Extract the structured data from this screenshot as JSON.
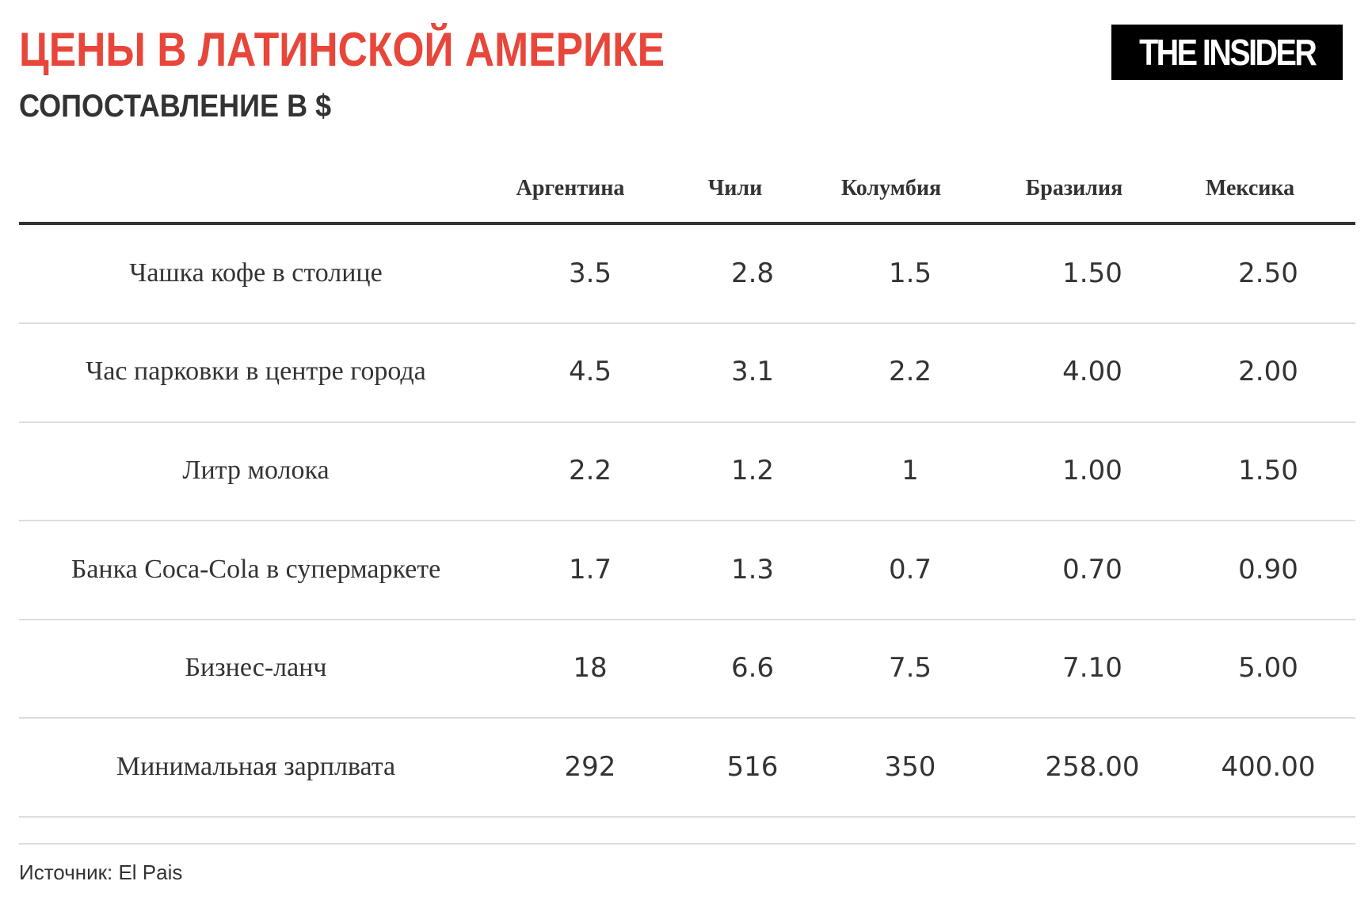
{
  "title": "ЦЕНЫ В ЛАТИНСКОЙ АМЕРИКЕ",
  "subtitle": "СОПОСТАВЛЕНИЕ В $",
  "logo": "THE INSIDER",
  "source": "Источник: El Pais",
  "colors": {
    "title": "#e8463a",
    "text": "#333333",
    "logo_bg": "#000000"
  },
  "chart_data": {
    "type": "table",
    "title": "ЦЕНЫ В ЛАТИНСКОЙ АМЕРИКЕ",
    "subtitle": "СОПОСТАВЛЕНИЕ В $",
    "columns": [
      "Аргентина",
      "Чили",
      "Колумбия",
      "Бразилия",
      "Мексика"
    ],
    "rows": [
      {
        "label": "Чашка кофе в столице",
        "values": [
          "3.5",
          "2.8",
          "1.5",
          "1.50",
          "2.50"
        ]
      },
      {
        "label": "Час парковки в центре города",
        "values": [
          "4.5",
          "3.1",
          "2.2",
          "4.00",
          "2.00"
        ]
      },
      {
        "label": "Литр молока",
        "values": [
          "2.2",
          "1.2",
          "1",
          "1.00",
          "1.50"
        ]
      },
      {
        "label": "Банка Coca-Cola в супермаркете",
        "values": [
          "1.7",
          "1.3",
          "0.7",
          "0.70",
          "0.90"
        ]
      },
      {
        "label": "Бизнес-ланч",
        "values": [
          "18",
          "6.6",
          "7.5",
          "7.10",
          "5.00"
        ]
      },
      {
        "label": "Минимальная зарплвата",
        "values": [
          "292",
          "516",
          "350",
          "258.00",
          "400.00"
        ]
      }
    ]
  }
}
